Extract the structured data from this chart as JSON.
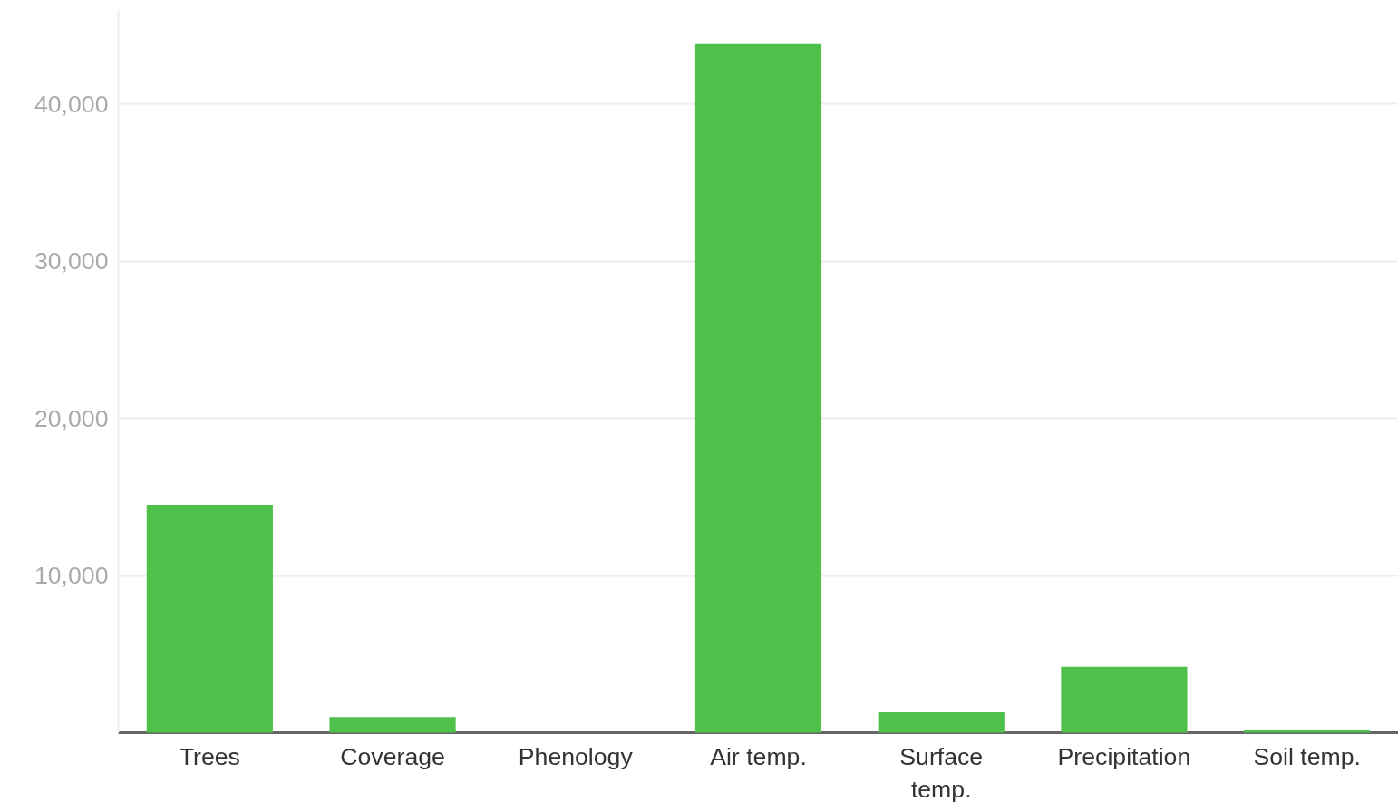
{
  "chart_data": {
    "type": "bar",
    "categories": [
      "Trees",
      "Coverage",
      "Phenology",
      "Air temp.",
      "Surface temp.",
      "Precipitation",
      "Soil temp."
    ],
    "values": [
      14500,
      1000,
      0,
      43800,
      1300,
      4200,
      150
    ],
    "color": "#4fc04a",
    "ylim": [
      0,
      46000
    ],
    "yticks": [
      {
        "value": 0,
        "label": null
      },
      {
        "value": 10000,
        "label": "10,000"
      },
      {
        "value": 20000,
        "label": "20,000"
      },
      {
        "value": 30000,
        "label": "30,000"
      },
      {
        "value": 40000,
        "label": "40,000"
      }
    ],
    "grid": "y"
  }
}
